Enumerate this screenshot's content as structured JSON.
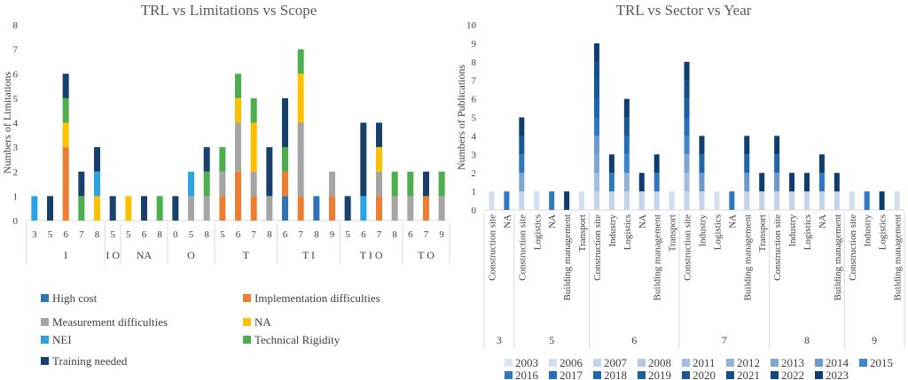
{
  "chart_data": [
    {
      "type": "bar",
      "stacked": true,
      "title": "TRL vs Limitations vs Scope",
      "ylabel": "Numbers of Limitations",
      "xlabel": "",
      "ylim": [
        0,
        8
      ],
      "yticks": [
        0,
        1,
        2,
        3,
        4,
        5,
        6,
        7,
        8
      ],
      "grid": false,
      "legend_position": "bottom",
      "groups": [
        {
          "label": "I",
          "categories": [
            "3",
            "5",
            "6",
            "7",
            "8"
          ]
        },
        {
          "label": "I O",
          "categories": [
            "5"
          ]
        },
        {
          "label": "NA",
          "categories": [
            "5",
            "6",
            "8"
          ]
        },
        {
          "label": "O",
          "categories": [
            "0",
            "5",
            "8"
          ]
        },
        {
          "label": "T",
          "categories": [
            "5",
            "6",
            "7",
            "8"
          ]
        },
        {
          "label": "T I",
          "categories": [
            "6",
            "7",
            "8",
            "9"
          ]
        },
        {
          "label": "T I O",
          "categories": [
            "5",
            "6",
            "7",
            "8"
          ]
        },
        {
          "label": "T O",
          "categories": [
            "6",
            "7",
            "9"
          ]
        }
      ],
      "series": [
        {
          "name": "High cost",
          "color": "#2e75b6",
          "values": [
            0,
            0,
            0,
            0,
            0,
            0,
            0,
            0,
            0,
            0,
            0,
            0,
            0,
            0,
            0,
            0,
            1,
            0,
            1,
            0,
            0,
            0,
            0,
            0,
            0,
            0,
            0
          ]
        },
        {
          "name": "Implementation difficulties",
          "color": "#ed7d31",
          "values": [
            0,
            0,
            3,
            0,
            0,
            0,
            0,
            0,
            0,
            0,
            0,
            0,
            1,
            2,
            1,
            0,
            1,
            1,
            0,
            1,
            0,
            0,
            1,
            0,
            0,
            1,
            0
          ]
        },
        {
          "name": "Measurement difficulties",
          "color": "#a5a5a5",
          "values": [
            0,
            0,
            0,
            0,
            0,
            0,
            0,
            0,
            0,
            0,
            1,
            1,
            1,
            2,
            1,
            1,
            0,
            3,
            0,
            1,
            0,
            0,
            1,
            1,
            1,
            0,
            1
          ]
        },
        {
          "name": "NA",
          "color": "#ffc000",
          "values": [
            0,
            0,
            1,
            0,
            1,
            0,
            1,
            0,
            0,
            0,
            0,
            0,
            0,
            1,
            2,
            0,
            0,
            2,
            0,
            0,
            0,
            0,
            1,
            0,
            0,
            0,
            0
          ]
        },
        {
          "name": "NEI",
          "color": "#29a3e3",
          "values": [
            1,
            0,
            0,
            0,
            1,
            0,
            0,
            0,
            0,
            0,
            1,
            0,
            0,
            0,
            0,
            0,
            0,
            0,
            0,
            0,
            0,
            1,
            0,
            0,
            0,
            0,
            0
          ]
        },
        {
          "name": "Technical Rigidity",
          "color": "#4cae4c",
          "values": [
            0,
            0,
            1,
            1,
            0,
            0,
            0,
            0,
            1,
            0,
            0,
            1,
            1,
            1,
            1,
            0,
            1,
            1,
            0,
            0,
            0,
            0,
            0,
            1,
            1,
            0,
            1
          ]
        },
        {
          "name": "Training  needed",
          "color": "#17406d",
          "values": [
            0,
            1,
            1,
            1,
            1,
            1,
            0,
            1,
            0,
            1,
            0,
            1,
            0,
            0,
            0,
            2,
            2,
            0,
            0,
            0,
            1,
            3,
            1,
            0,
            0,
            1,
            0
          ]
        }
      ]
    },
    {
      "type": "bar",
      "stacked": true,
      "title": "TRL vs Sector vs Year",
      "ylabel": "Numbers of  Publications",
      "xlabel": "",
      "ylim": [
        0,
        10
      ],
      "yticks": [
        0,
        1,
        2,
        3,
        4,
        5,
        6,
        7,
        8,
        9,
        10
      ],
      "grid": false,
      "legend_position": "bottom",
      "groups": [
        {
          "label": "3",
          "categories": [
            "Construction site",
            "NA"
          ],
          "totals": [
            1,
            1
          ]
        },
        {
          "label": "5",
          "categories": [
            "Construction site",
            "Logistics",
            "NA",
            "Building management",
            "Transport"
          ],
          "totals": [
            5,
            1,
            1,
            1,
            1
          ]
        },
        {
          "label": "6",
          "categories": [
            "Construction site",
            "Industry",
            "Logistics",
            "NA",
            "Building management",
            "Transport"
          ],
          "totals": [
            9,
            3,
            6,
            2,
            3,
            1
          ]
        },
        {
          "label": "7",
          "categories": [
            "Construction site",
            "Industry",
            "Logistics",
            "NA",
            "Building management",
            "Transport"
          ],
          "totals": [
            8,
            4,
            1,
            1,
            4,
            2
          ]
        },
        {
          "label": "8",
          "categories": [
            "Construction site",
            "Industry",
            "Logistics",
            "NA",
            "Building management"
          ],
          "totals": [
            4,
            2,
            2,
            3,
            2
          ]
        },
        {
          "label": "9",
          "categories": [
            "Construction site",
            "Industry",
            "Logistics",
            "Building management"
          ],
          "totals": [
            1,
            1,
            1,
            1
          ]
        }
      ],
      "legend": [
        {
          "name": "2003",
          "color": "#dde7f3"
        },
        {
          "name": "2006",
          "color": "#d2dff0"
        },
        {
          "name": "2007",
          "color": "#c3d4eb"
        },
        {
          "name": "2008",
          "color": "#b3c9e5"
        },
        {
          "name": "2011",
          "color": "#a3bee0"
        },
        {
          "name": "2012",
          "color": "#92b2da"
        },
        {
          "name": "2013",
          "color": "#7fa5d4"
        },
        {
          "name": "2014",
          "color": "#6b98cd"
        },
        {
          "name": "2015",
          "color": "#3f87c9"
        },
        {
          "name": "2016",
          "color": "#2e78c0"
        },
        {
          "name": "2017",
          "color": "#2470b6"
        },
        {
          "name": "2018",
          "color": "#1d67aa"
        },
        {
          "name": "2019",
          "color": "#1a5f9f"
        },
        {
          "name": "2020",
          "color": "#175793"
        },
        {
          "name": "2021",
          "color": "#144f87"
        },
        {
          "name": "2022",
          "color": "#11477a"
        },
        {
          "name": "2023",
          "color": "#0e3e6d"
        }
      ]
    }
  ]
}
